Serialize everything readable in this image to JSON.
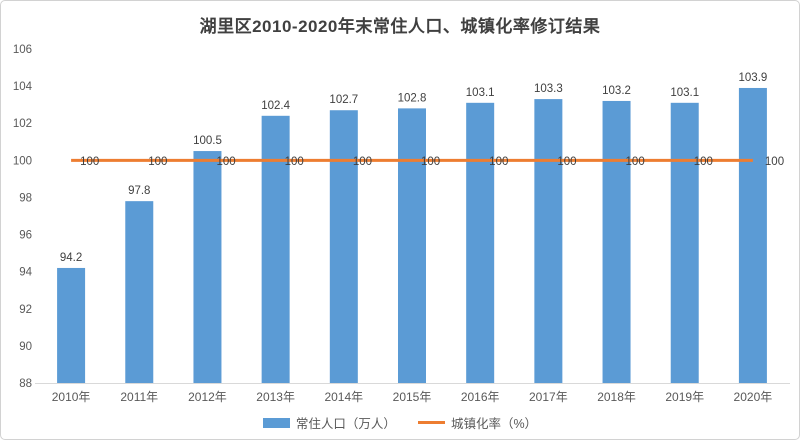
{
  "chart_data": {
    "type": "bar",
    "subtype": "bar-line-combo",
    "title": "湖里区2010-2020年末常住人口、城镇化率修订结果",
    "categories": [
      "2010年",
      "2011年",
      "2012年",
      "2013年",
      "2014年",
      "2015年",
      "2016年",
      "2017年",
      "2018年",
      "2019年",
      "2020年"
    ],
    "series": [
      {
        "name": "常住人口（万人）",
        "type": "bar",
        "color": "#5B9BD5",
        "values": [
          94.2,
          97.8,
          100.5,
          102.4,
          102.7,
          102.8,
          103.1,
          103.3,
          103.2,
          103.1,
          103.9
        ],
        "labels": [
          "94.2",
          "97.8",
          "100.5",
          "102.4",
          "102.7",
          "102.8",
          "103.1",
          "103.3",
          "103.2",
          "103.1",
          "103.9"
        ]
      },
      {
        "name": "城镇化率（%）",
        "type": "line",
        "color": "#ED7D31",
        "values": [
          100,
          100,
          100,
          100,
          100,
          100,
          100,
          100,
          100,
          100,
          100
        ],
        "labels": [
          "100",
          "100",
          "100",
          "100",
          "100",
          "100",
          "100",
          "100",
          "100",
          "100",
          "100"
        ]
      }
    ],
    "y_axis": {
      "min": 88,
      "max": 106,
      "step": 2,
      "ticks": [
        "88",
        "90",
        "92",
        "94",
        "96",
        "98",
        "100",
        "102",
        "104",
        "106"
      ]
    },
    "grid": false,
    "data_labels": true,
    "legend_position": "bottom",
    "colors": {
      "title_text": "#404040",
      "axis_text": "#595959",
      "data_label_text": "#404040",
      "axis_line": "#d9d9d9"
    }
  }
}
